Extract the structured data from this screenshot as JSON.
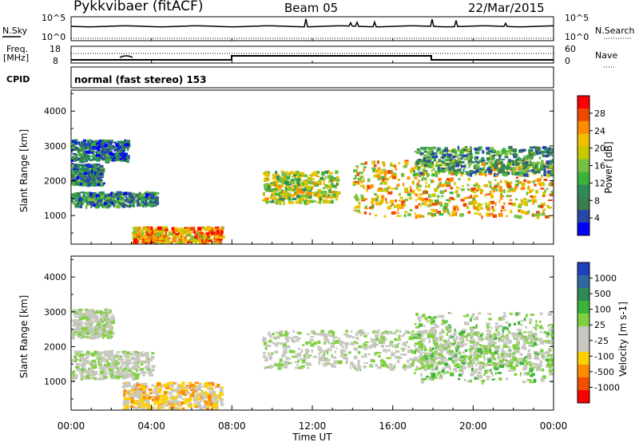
{
  "header": {
    "station": "Pykkvibaer (fitACF)",
    "beam": "Beam 05",
    "date": "22/Mar/2015"
  },
  "strip_labels": {
    "nsky": "N.Sky",
    "freq_top": "Freq.",
    "freq_unit": "[MHz]",
    "cpid": "CPID",
    "nsearch": "N.Search",
    "nave": "Nave",
    "cpid_text": "normal (fast stereo) 153",
    "noise_ticks_left": [
      "10^5",
      "10^0"
    ],
    "noise_ticks_right": [
      "10^5",
      "10^0"
    ],
    "freq_ticks_left": [
      "18",
      "8"
    ],
    "nave_ticks_right": [
      "60",
      "0"
    ]
  },
  "axes": {
    "ylabel": "Slant Range [km]",
    "xlabel": "Time UT",
    "yticks": [
      "4000",
      "3000",
      "2000",
      "1000"
    ],
    "xticks": [
      "00:00",
      "04:00",
      "08:00",
      "12:00",
      "16:00",
      "20:00",
      "00:00"
    ]
  },
  "power_scale": {
    "label": "Power [dB]",
    "ticks": [
      "28",
      "24",
      "20",
      "16",
      "12",
      "8",
      "4"
    ],
    "colors": [
      "#ff0000",
      "#f04800",
      "#ff8c00",
      "#f0c000",
      "#c8c800",
      "#78c040",
      "#3cb43c",
      "#2e8b57",
      "#3a7d4e",
      "#2848a8",
      "#0000ff"
    ]
  },
  "velocity_scale": {
    "label": "Velocity [m s-1]",
    "ticks": [
      "1000",
      "500",
      "100",
      "25",
      "-25",
      "-100",
      "-500",
      "-1000"
    ],
    "colors": [
      "#2040c0",
      "#2e6aa0",
      "#2e8b57",
      "#3cb43c",
      "#80d040",
      "#c8c8c0",
      "#c8c8c0",
      "#ffd000",
      "#ff8c00",
      "#f05000",
      "#ff0000"
    ]
  },
  "chart_data": [
    {
      "type": "heatmap",
      "title": "",
      "quantity": "Power [dB]",
      "xlabel": "Time UT",
      "ylabel": "Slant Range [km]",
      "xlim": [
        0,
        24
      ],
      "ylim": [
        180,
        4600
      ],
      "colorbar_range": [
        0,
        30
      ],
      "regions": [
        {
          "t": [
            0,
            2.8
          ],
          "r": [
            2600,
            3200
          ],
          "value": 6
        },
        {
          "t": [
            0,
            1.5
          ],
          "r": [
            1900,
            2500
          ],
          "value": 8
        },
        {
          "t": [
            0,
            4.2
          ],
          "r": [
            1300,
            1700
          ],
          "value": 9
        },
        {
          "t": [
            3.0,
            7.5
          ],
          "r": [
            250,
            700
          ],
          "value": 22
        },
        {
          "t": [
            9.5,
            13.2
          ],
          "r": [
            1400,
            2300
          ],
          "value": 16
        },
        {
          "t": [
            14.0,
            24
          ],
          "r": [
            1000,
            2600
          ],
          "value": 20
        },
        {
          "t": [
            17.0,
            24
          ],
          "r": [
            2200,
            3000
          ],
          "value": 10
        }
      ]
    },
    {
      "type": "heatmap",
      "title": "",
      "quantity": "Velocity [m s-1]",
      "xlabel": "Time UT",
      "ylabel": "Slant Range [km]",
      "xlim": [
        0,
        24
      ],
      "ylim": [
        180,
        4600
      ],
      "colorbar_range": [
        -1000,
        1000
      ],
      "regions": [
        {
          "t": [
            0,
            4.0
          ],
          "r": [
            1100,
            1900
          ],
          "value": 0
        },
        {
          "t": [
            0,
            2.0
          ],
          "r": [
            2300,
            3100
          ],
          "value": 0
        },
        {
          "t": [
            2.5,
            7.5
          ],
          "r": [
            250,
            1000
          ],
          "value": -300
        },
        {
          "t": [
            9.5,
            24
          ],
          "r": [
            1400,
            2500
          ],
          "value": 0
        },
        {
          "t": [
            17.0,
            24
          ],
          "r": [
            1000,
            3000
          ],
          "value": 100
        }
      ]
    }
  ]
}
